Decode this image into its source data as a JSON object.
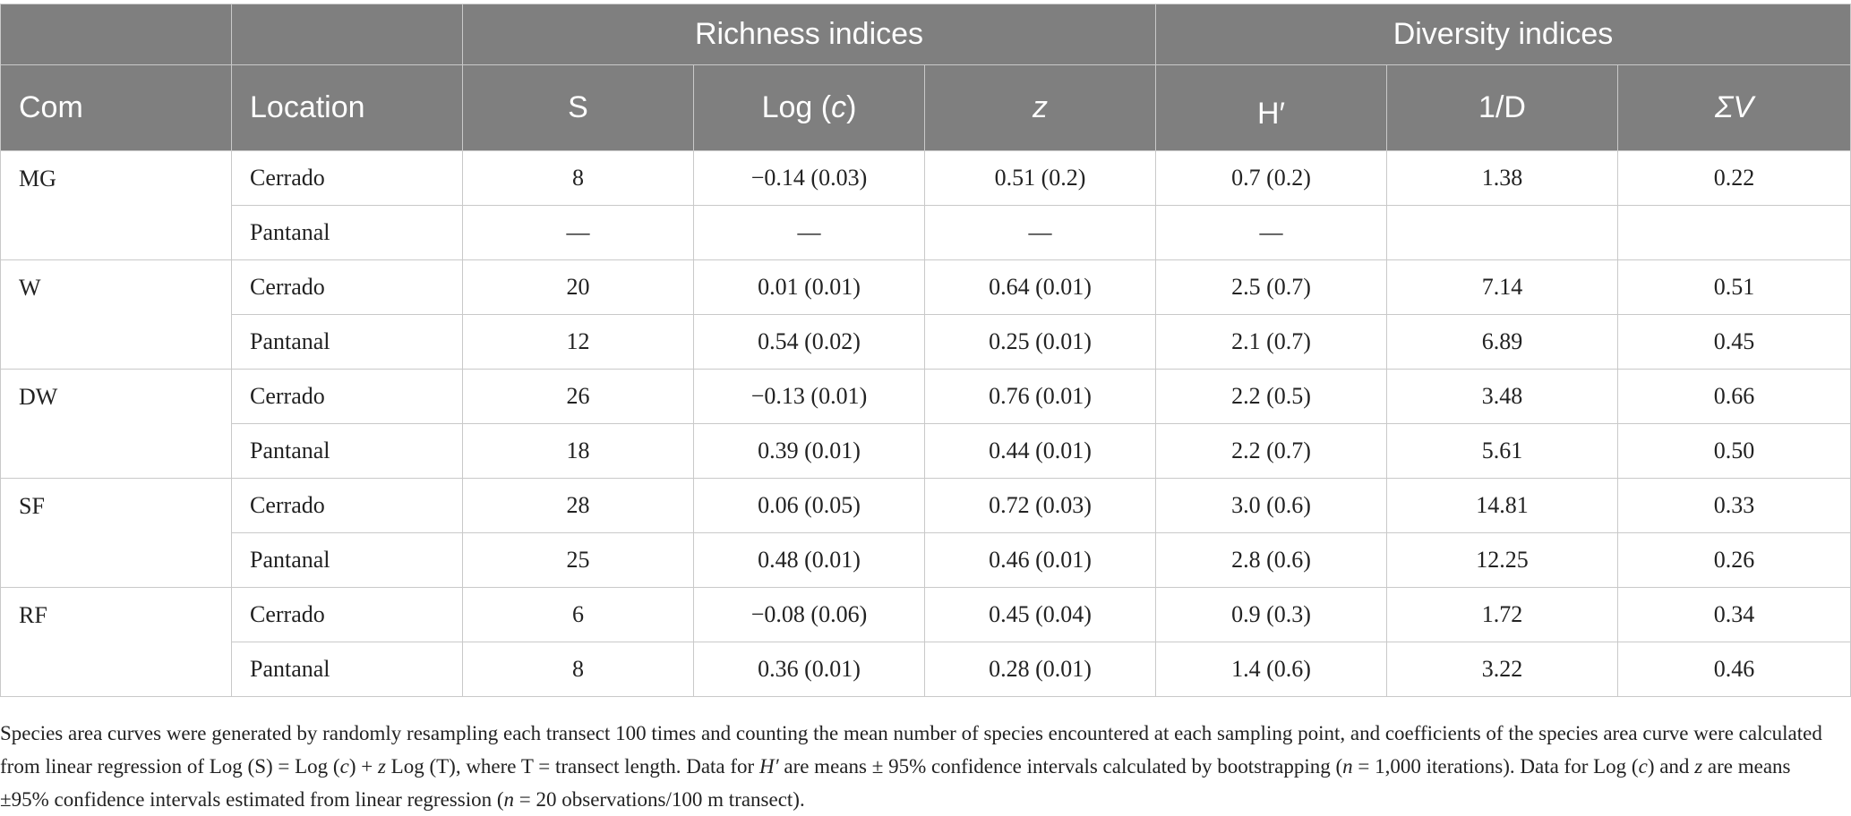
{
  "header": {
    "groups": [
      {
        "label": ""
      },
      {
        "label": ""
      },
      {
        "label": "Richness indices"
      },
      {
        "label": "Diversity indices"
      }
    ],
    "columns": [
      "Com",
      "Location",
      "S",
      "Log (c)",
      "z",
      "H′",
      "1/D",
      "ΣV"
    ]
  },
  "rows": [
    {
      "com": "MG",
      "location": "Cerrado",
      "s": "8",
      "logc": "−0.14 (0.03)",
      "z": "0.51 (0.2)",
      "h": "0.7 (0.2)",
      "invd": "1.38",
      "sv": "0.22"
    },
    {
      "com": "",
      "location": "Pantanal",
      "s": "—",
      "logc": "—",
      "z": "—",
      "h": "—",
      "invd": "",
      "sv": ""
    },
    {
      "com": "W",
      "location": "Cerrado",
      "s": "20",
      "logc": "0.01 (0.01)",
      "z": "0.64 (0.01)",
      "h": "2.5 (0.7)",
      "invd": "7.14",
      "sv": "0.51"
    },
    {
      "com": "",
      "location": "Pantanal",
      "s": "12",
      "logc": "0.54 (0.02)",
      "z": "0.25 (0.01)",
      "h": "2.1 (0.7)",
      "invd": "6.89",
      "sv": "0.45"
    },
    {
      "com": "DW",
      "location": "Cerrado",
      "s": "26",
      "logc": "−0.13 (0.01)",
      "z": "0.76 (0.01)",
      "h": "2.2 (0.5)",
      "invd": "3.48",
      "sv": "0.66"
    },
    {
      "com": "",
      "location": "Pantanal",
      "s": "18",
      "logc": "0.39 (0.01)",
      "z": "0.44 (0.01)",
      "h": "2.2 (0.7)",
      "invd": "5.61",
      "sv": "0.50"
    },
    {
      "com": "SF",
      "location": "Cerrado",
      "s": "28",
      "logc": "0.06 (0.05)",
      "z": "0.72 (0.03)",
      "h": "3.0 (0.6)",
      "invd": "14.81",
      "sv": "0.33"
    },
    {
      "com": "",
      "location": "Pantanal",
      "s": "25",
      "logc": "0.48 (0.01)",
      "z": "0.46 (0.01)",
      "h": "2.8 (0.6)",
      "invd": "12.25",
      "sv": "0.26"
    },
    {
      "com": "RF",
      "location": "Cerrado",
      "s": "6",
      "logc": "−0.08 (0.06)",
      "z": "0.45 (0.04)",
      "h": "0.9 (0.3)",
      "invd": "1.72",
      "sv": "0.34"
    },
    {
      "com": "",
      "location": "Pantanal",
      "s": "8",
      "logc": "0.36 (0.01)",
      "z": "0.28 (0.01)",
      "h": "1.4 (0.6)",
      "invd": "3.22",
      "sv": "0.46"
    }
  ],
  "footnote": [
    {
      "t": "Species area curves were generated by randomly resampling each transect 100 times and counting the mean number of species encountered at each sampling point, and coefficients of the species area curve were calculated from linear regression of Log (S) = Log ("
    },
    {
      "t": "c",
      "i": true
    },
    {
      "t": ") + "
    },
    {
      "t": "z",
      "i": true
    },
    {
      "t": " Log (T), where T = transect length. Data for "
    },
    {
      "t": "H′",
      "i": true
    },
    {
      "t": " are means ± 95% confidence intervals calculated by bootstrapping ("
    },
    {
      "t": "n",
      "i": true
    },
    {
      "t": " = 1,000 iterations). Data for Log ("
    },
    {
      "t": "c",
      "i": true
    },
    {
      "t": ") and "
    },
    {
      "t": "z",
      "i": true
    },
    {
      "t": " are means ±95% confidence intervals estimated from linear regression ("
    },
    {
      "t": "n",
      "i": true
    },
    {
      "t": " = 20 observations/100 m transect)."
    }
  ]
}
